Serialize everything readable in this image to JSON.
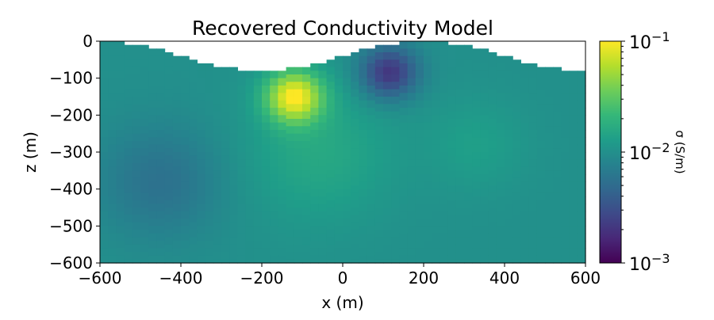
{
  "chart_data": {
    "type": "heatmap",
    "title": "Recovered Conductivity Model",
    "xlabel": "x (m)",
    "ylabel": "z (m)",
    "xlim": [
      -600,
      600
    ],
    "ylim": [
      -600,
      0
    ],
    "xticks": [
      -600,
      -400,
      -200,
      0,
      200,
      400,
      600
    ],
    "xtick_labels": [
      "−600",
      "−400",
      "−200",
      "0",
      "200",
      "400",
      "600"
    ],
    "yticks": [
      0,
      -100,
      -200,
      -300,
      -400,
      -500,
      -600
    ],
    "ytick_labels": [
      "0",
      "−100",
      "−200",
      "−300",
      "−400",
      "−500",
      "−600"
    ],
    "topography": {
      "description_x": [
        -600,
        -200,
        200,
        600
      ],
      "z": [
        0,
        -80,
        0,
        -80
      ]
    },
    "background_log10_sigma": -2.0,
    "anomalies": [
      {
        "name": "conductor",
        "x": -120,
        "z": -150,
        "log10_sigma": -1.05,
        "radius": 70
      },
      {
        "name": "resistor",
        "x": 115,
        "z": -85,
        "log10_sigma": -2.7,
        "radius": 70
      },
      {
        "name": "mild-resistor",
        "x": -450,
        "z": -380,
        "log10_sigma": -2.25,
        "radius": 150
      },
      {
        "name": "mild-conductor",
        "x": -60,
        "z": -300,
        "log10_sigma": -1.8,
        "radius": 180
      },
      {
        "name": "mild-conductor-right",
        "x": 330,
        "z": -280,
        "log10_sigma": -1.88,
        "radius": 120
      }
    ],
    "colorbar": {
      "label": "σ (S/m)",
      "scale": "log",
      "range": [
        0.001,
        0.1
      ],
      "colormap": "viridis",
      "tick_bases": [
        "10",
        "10",
        "10"
      ],
      "tick_exponents": [
        "−1",
        "−2",
        "−3"
      ],
      "tick_values": [
        0.1,
        0.01,
        0.001
      ]
    }
  }
}
